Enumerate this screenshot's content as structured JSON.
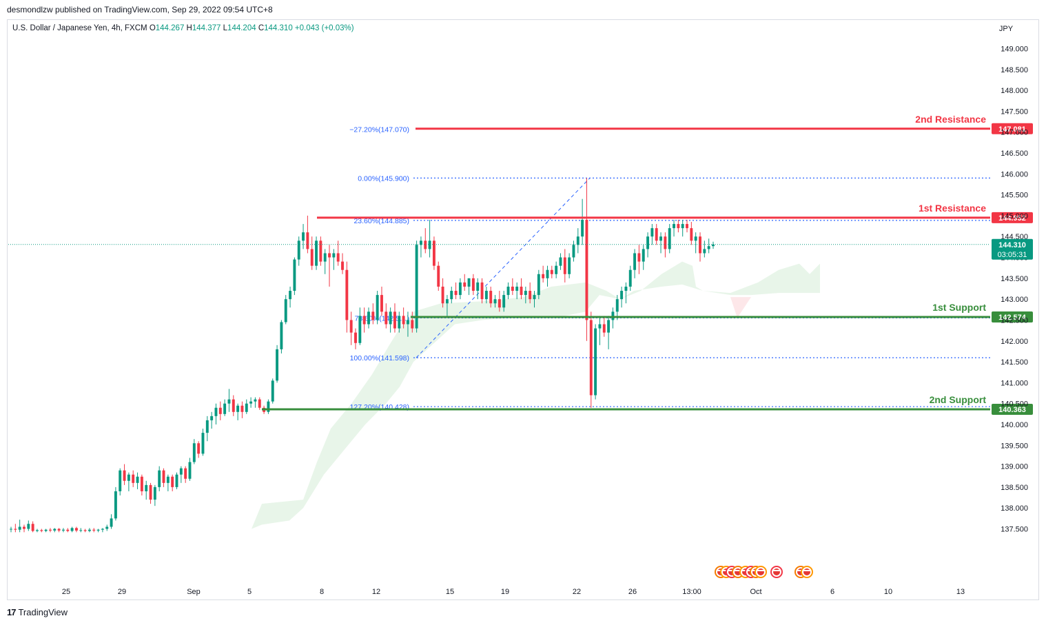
{
  "publisher_line": "desmondlzw published on TradingView.com, Sep 29, 2022 09:54 UTC+8",
  "legend": {
    "symbol": "U.S. Dollar / Japanese Yen, 4h, FXCM",
    "o_label": "O",
    "o_value": "144.267",
    "h_label": "H",
    "h_value": "144.377",
    "l_label": "L",
    "l_value": "144.204",
    "c_label": "C",
    "c_value": "144.310",
    "change": "+0.043 (+0.03%)"
  },
  "brand": "TradingView",
  "colors": {
    "up": "#089981",
    "down": "#f23645",
    "resistance": "#f23645",
    "support": "#388e3c",
    "fib": "#2962ff",
    "cloud": "#e8f5e9",
    "cloud_red": "#fde7e9"
  },
  "chart_data": {
    "type": "candlestick",
    "currency_label": "JPY",
    "y_ticks": [
      "149.000",
      "148.500",
      "148.000",
      "147.500",
      "147.000",
      "146.500",
      "146.000",
      "145.500",
      "145.000",
      "144.500",
      "144.000",
      "143.500",
      "143.000",
      "142.500",
      "142.000",
      "141.500",
      "141.000",
      "140.500",
      "140.000",
      "139.500",
      "139.000",
      "138.500",
      "138.000",
      "137.500"
    ],
    "ylim": [
      137.45,
      149.3
    ],
    "x_ticks": [
      "25",
      "29",
      "Sep",
      "5",
      "8",
      "12",
      "15",
      "19",
      "22",
      "26",
      "13:00",
      "Oct",
      "6",
      "10",
      "13"
    ],
    "current_price": "144.310",
    "countdown": "03:05:31",
    "levels": [
      {
        "name": "2nd Resistance",
        "value": 147.081,
        "label": "147.081",
        "kind": "resistance"
      },
      {
        "name": "1st Resistance",
        "value": 144.952,
        "label": "144.952",
        "kind": "resistance"
      },
      {
        "name": "1st Support",
        "value": 142.574,
        "label": "142.574",
        "kind": "support"
      },
      {
        "name": "2nd Support",
        "value": 140.363,
        "label": "140.363",
        "kind": "support"
      }
    ],
    "fibonacci": [
      {
        "label": "−27.20%(147.070)",
        "value": 147.07
      },
      {
        "label": "0.00%(145.900)",
        "value": 145.9
      },
      {
        "label": "23.60%(144.885)",
        "value": 144.885
      },
      {
        "label": "78.60%(142.5…)",
        "value": 142.55
      },
      {
        "label": "100.00%(141.598)",
        "value": 141.598
      },
      {
        "label": "127.20%(140.428)",
        "value": 140.428
      }
    ],
    "candles": [
      [
        137.5,
        137.55,
        137.42,
        137.5
      ],
      [
        137.5,
        137.62,
        137.42,
        137.48
      ],
      [
        137.48,
        137.72,
        137.42,
        137.55
      ],
      [
        137.55,
        137.6,
        137.42,
        137.5
      ],
      [
        137.5,
        137.7,
        137.45,
        137.62
      ],
      [
        137.62,
        137.68,
        137.42,
        137.45
      ],
      [
        137.45,
        137.5,
        137.42,
        137.47
      ],
      [
        137.47,
        137.5,
        137.42,
        137.45
      ],
      [
        137.45,
        137.5,
        137.42,
        137.48
      ],
      [
        137.48,
        137.52,
        137.42,
        137.46
      ],
      [
        137.46,
        137.52,
        137.42,
        137.5
      ],
      [
        137.5,
        137.52,
        137.42,
        137.46
      ],
      [
        137.46,
        137.52,
        137.42,
        137.48
      ],
      [
        137.48,
        137.52,
        137.42,
        137.45
      ],
      [
        137.45,
        137.55,
        137.42,
        137.52
      ],
      [
        137.52,
        137.55,
        137.42,
        137.46
      ],
      [
        137.46,
        137.52,
        137.42,
        137.47
      ],
      [
        137.47,
        137.5,
        137.42,
        137.45
      ],
      [
        137.45,
        137.52,
        137.42,
        137.48
      ],
      [
        137.48,
        137.52,
        137.42,
        137.46
      ],
      [
        137.46,
        137.5,
        137.42,
        137.48
      ],
      [
        137.48,
        137.52,
        137.42,
        137.5
      ],
      [
        137.5,
        137.6,
        137.45,
        137.55
      ],
      [
        137.55,
        137.85,
        137.5,
        137.75
      ],
      [
        137.75,
        138.5,
        137.7,
        138.4
      ],
      [
        138.4,
        138.95,
        138.3,
        138.9
      ],
      [
        138.9,
        139.05,
        138.55,
        138.65
      ],
      [
        138.65,
        138.85,
        138.4,
        138.8
      ],
      [
        138.8,
        138.9,
        138.5,
        138.6
      ],
      [
        138.6,
        138.85,
        138.45,
        138.75
      ],
      [
        138.75,
        138.8,
        138.3,
        138.4
      ],
      [
        138.4,
        138.65,
        138.2,
        138.55
      ],
      [
        138.55,
        138.6,
        138.1,
        138.2
      ],
      [
        138.2,
        138.55,
        138.05,
        138.5
      ],
      [
        138.5,
        139.0,
        138.4,
        138.9
      ],
      [
        138.9,
        138.95,
        138.5,
        138.6
      ],
      [
        138.6,
        138.8,
        138.4,
        138.75
      ],
      [
        138.75,
        138.8,
        138.4,
        138.5
      ],
      [
        138.5,
        138.85,
        138.45,
        138.8
      ],
      [
        138.8,
        139.0,
        138.6,
        138.95
      ],
      [
        138.95,
        139.0,
        138.6,
        138.7
      ],
      [
        138.7,
        139.2,
        138.65,
        139.1
      ],
      [
        139.1,
        139.65,
        139.05,
        139.55
      ],
      [
        139.55,
        139.6,
        139.2,
        139.3
      ],
      [
        139.3,
        139.9,
        139.25,
        139.8
      ],
      [
        139.8,
        140.2,
        139.6,
        140.1
      ],
      [
        140.1,
        140.3,
        139.9,
        140.2
      ],
      [
        140.2,
        140.5,
        140.0,
        140.4
      ],
      [
        140.4,
        140.55,
        140.1,
        140.25
      ],
      [
        140.25,
        140.6,
        140.2,
        140.5
      ],
      [
        140.5,
        140.85,
        140.3,
        140.6
      ],
      [
        140.6,
        140.7,
        140.2,
        140.3
      ],
      [
        140.3,
        140.5,
        140.1,
        140.45
      ],
      [
        140.45,
        140.55,
        140.15,
        140.3
      ],
      [
        140.3,
        140.6,
        140.25,
        140.5
      ],
      [
        140.5,
        140.65,
        140.4,
        140.55
      ],
      [
        140.55,
        140.65,
        140.4,
        140.6
      ],
      [
        140.6,
        140.65,
        140.35,
        140.4
      ],
      [
        140.4,
        140.45,
        140.25,
        140.3
      ],
      [
        140.3,
        140.6,
        140.25,
        140.55
      ],
      [
        140.55,
        141.1,
        140.5,
        141.05
      ],
      [
        141.05,
        141.9,
        141.0,
        141.8
      ],
      [
        141.8,
        142.5,
        141.7,
        142.45
      ],
      [
        142.45,
        143.1,
        142.4,
        143.0
      ],
      [
        143.0,
        143.3,
        142.8,
        143.2
      ],
      [
        143.2,
        144.0,
        143.1,
        143.95
      ],
      [
        143.95,
        144.5,
        143.8,
        144.4
      ],
      [
        144.4,
        144.8,
        144.2,
        144.6
      ],
      [
        144.6,
        145.0,
        144.1,
        144.2
      ],
      [
        144.2,
        144.5,
        143.7,
        143.8
      ],
      [
        143.8,
        144.5,
        143.7,
        144.4
      ],
      [
        144.4,
        144.5,
        143.8,
        143.9
      ],
      [
        143.9,
        144.2,
        143.6,
        144.1
      ],
      [
        144.1,
        144.3,
        143.3,
        144.0
      ],
      [
        144.0,
        144.2,
        143.7,
        144.1
      ],
      [
        144.1,
        144.4,
        143.8,
        143.9
      ],
      [
        143.9,
        144.1,
        143.6,
        143.7
      ],
      [
        143.7,
        143.9,
        142.2,
        142.5
      ],
      [
        142.5,
        142.7,
        141.9,
        142.2
      ],
      [
        142.2,
        142.3,
        141.8,
        141.95
      ],
      [
        141.95,
        142.8,
        141.9,
        142.6
      ],
      [
        142.6,
        142.8,
        142.2,
        142.4
      ],
      [
        142.4,
        142.8,
        142.3,
        142.7
      ],
      [
        142.7,
        142.9,
        142.4,
        142.5
      ],
      [
        142.5,
        143.2,
        142.4,
        143.1
      ],
      [
        143.1,
        143.3,
        142.6,
        142.7
      ],
      [
        142.7,
        142.9,
        142.3,
        142.4
      ],
      [
        142.4,
        142.8,
        142.2,
        142.7
      ],
      [
        142.7,
        142.9,
        142.2,
        142.3
      ],
      [
        142.3,
        142.7,
        142.2,
        142.6
      ],
      [
        142.6,
        142.8,
        142.3,
        142.4
      ],
      [
        142.4,
        142.7,
        142.1,
        142.5
      ],
      [
        142.5,
        142.7,
        142.2,
        142.3
      ],
      [
        142.3,
        144.4,
        142.2,
        144.3
      ],
      [
        144.3,
        144.5,
        144.0,
        144.4
      ],
      [
        144.4,
        144.7,
        144.1,
        144.2
      ],
      [
        144.2,
        144.9,
        144.0,
        144.4
      ],
      [
        144.4,
        144.5,
        143.7,
        143.8
      ],
      [
        143.8,
        143.9,
        143.2,
        143.3
      ],
      [
        143.3,
        143.5,
        142.8,
        142.9
      ],
      [
        142.9,
        143.1,
        142.6,
        143.0
      ],
      [
        143.0,
        143.3,
        142.9,
        143.2
      ],
      [
        143.2,
        143.4,
        143.0,
        143.1
      ],
      [
        143.1,
        143.5,
        143.0,
        143.4
      ],
      [
        143.4,
        143.6,
        143.2,
        143.3
      ],
      [
        143.3,
        143.5,
        143.1,
        143.5
      ],
      [
        143.5,
        143.6,
        143.1,
        143.2
      ],
      [
        143.2,
        143.5,
        143.0,
        143.4
      ],
      [
        143.4,
        143.5,
        142.9,
        143.0
      ],
      [
        143.0,
        143.3,
        142.9,
        143.2
      ],
      [
        143.2,
        143.3,
        142.8,
        142.9
      ],
      [
        142.9,
        143.1,
        142.8,
        143.0
      ],
      [
        143.0,
        143.2,
        142.7,
        142.8
      ],
      [
        142.8,
        143.2,
        142.7,
        143.1
      ],
      [
        143.1,
        143.4,
        143.0,
        143.3
      ],
      [
        143.3,
        143.5,
        143.1,
        143.2
      ],
      [
        143.2,
        143.4,
        143.0,
        143.3
      ],
      [
        143.3,
        143.5,
        143.0,
        143.1
      ],
      [
        143.1,
        143.3,
        142.9,
        143.2
      ],
      [
        143.2,
        143.4,
        142.9,
        143.0
      ],
      [
        143.0,
        143.2,
        142.8,
        143.1
      ],
      [
        143.1,
        143.7,
        143.0,
        143.6
      ],
      [
        143.6,
        143.8,
        143.4,
        143.5
      ],
      [
        143.5,
        143.8,
        143.3,
        143.7
      ],
      [
        143.7,
        143.8,
        143.5,
        143.6
      ],
      [
        143.6,
        143.9,
        143.5,
        143.8
      ],
      [
        143.8,
        144.1,
        143.7,
        144.0
      ],
      [
        144.0,
        144.2,
        143.4,
        143.6
      ],
      [
        143.6,
        144.1,
        143.5,
        144.0
      ],
      [
        144.0,
        144.4,
        143.9,
        144.3
      ],
      [
        144.3,
        144.7,
        144.1,
        144.5
      ],
      [
        144.5,
        145.4,
        144.3,
        144.9
      ],
      [
        144.9,
        145.9,
        142.0,
        142.5
      ],
      [
        142.5,
        142.7,
        140.4,
        140.7
      ],
      [
        140.7,
        142.4,
        140.6,
        142.3
      ],
      [
        142.3,
        142.6,
        141.9,
        142.4
      ],
      [
        142.4,
        142.6,
        142.1,
        142.2
      ],
      [
        142.2,
        142.6,
        141.8,
        142.5
      ],
      [
        142.5,
        142.8,
        142.3,
        142.7
      ],
      [
        142.7,
        143.1,
        142.5,
        143.0
      ],
      [
        143.0,
        143.3,
        142.8,
        143.2
      ],
      [
        143.2,
        143.4,
        142.9,
        143.3
      ],
      [
        143.3,
        143.8,
        143.2,
        143.7
      ],
      [
        143.7,
        144.2,
        143.5,
        144.1
      ],
      [
        144.1,
        144.3,
        143.6,
        143.9
      ],
      [
        143.9,
        144.3,
        143.7,
        144.2
      ],
      [
        144.2,
        144.6,
        144.0,
        144.5
      ],
      [
        144.5,
        144.8,
        144.3,
        144.7
      ],
      [
        144.7,
        144.8,
        144.3,
        144.4
      ],
      [
        144.4,
        144.6,
        144.1,
        144.5
      ],
      [
        144.5,
        144.6,
        144.0,
        144.2
      ],
      [
        144.2,
        144.8,
        144.1,
        144.7
      ],
      [
        144.7,
        144.9,
        144.5,
        144.8
      ],
      [
        144.8,
        144.9,
        144.6,
        144.7
      ],
      [
        144.7,
        144.9,
        144.5,
        144.8
      ],
      [
        144.8,
        144.9,
        144.6,
        144.7
      ],
      [
        144.7,
        144.85,
        144.3,
        144.4
      ],
      [
        144.4,
        144.6,
        144.1,
        144.5
      ],
      [
        144.5,
        144.6,
        143.9,
        144.1
      ],
      [
        144.1,
        144.4,
        144.0,
        144.2
      ],
      [
        144.2,
        144.45,
        144.1,
        144.27
      ],
      [
        144.27,
        144.377,
        144.204,
        144.31
      ]
    ]
  }
}
